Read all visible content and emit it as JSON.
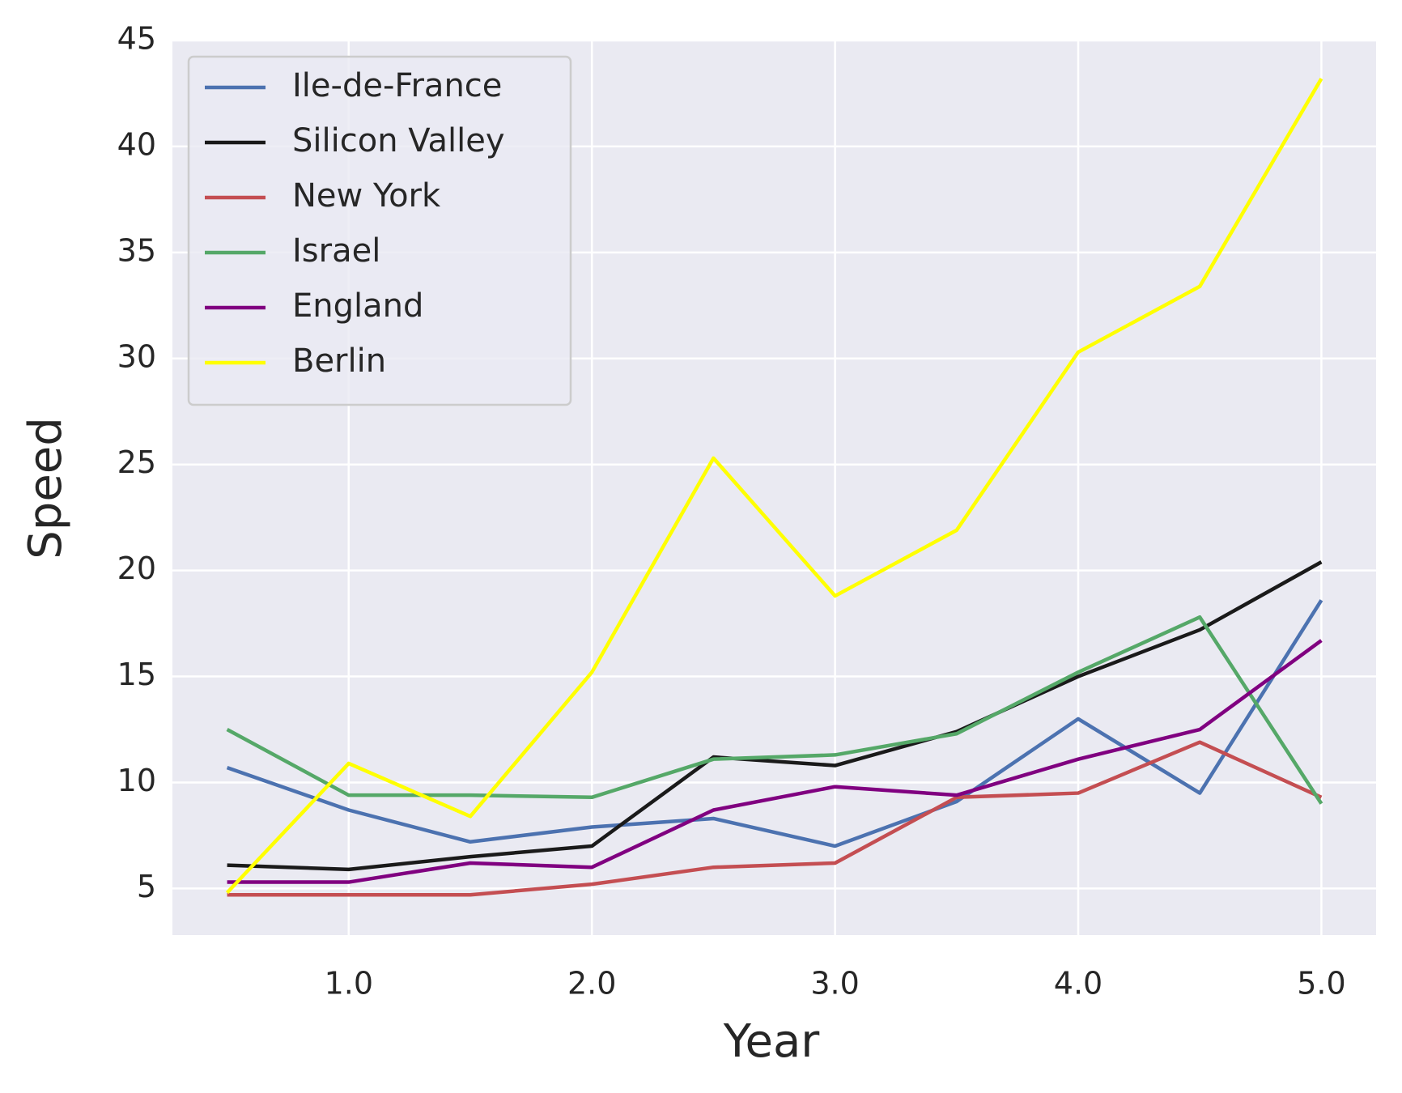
{
  "chart_data": {
    "type": "line",
    "x_label": "Year",
    "y_label": "Speed",
    "x": [
      0.5,
      1.0,
      1.5,
      2.0,
      2.5,
      3.0,
      3.5,
      4.0,
      4.5,
      5.0
    ],
    "series": [
      {
        "name": "Ile-de-France",
        "color": "#4c72b0",
        "values": [
          10.7,
          8.7,
          7.2,
          7.9,
          8.3,
          7.0,
          9.1,
          13.0,
          9.5,
          18.6
        ]
      },
      {
        "name": "Silicon Valley",
        "color": "#1a1a1a",
        "values": [
          6.1,
          5.9,
          6.5,
          7.0,
          11.2,
          10.8,
          12.4,
          15.0,
          17.2,
          20.4
        ]
      },
      {
        "name": "New York",
        "color": "#c44e52",
        "values": [
          4.7,
          4.7,
          4.7,
          5.2,
          6.0,
          6.2,
          9.3,
          9.5,
          11.9,
          9.3
        ]
      },
      {
        "name": "Israel",
        "color": "#55a868",
        "values": [
          12.5,
          9.4,
          9.4,
          9.3,
          11.1,
          11.3,
          12.3,
          15.2,
          17.8,
          9.0
        ]
      },
      {
        "name": "England",
        "color": "#800080",
        "values": [
          5.3,
          5.3,
          6.2,
          6.0,
          8.7,
          9.8,
          9.4,
          11.1,
          12.5,
          16.7
        ]
      },
      {
        "name": "Berlin",
        "color": "#ffff00",
        "values": [
          4.8,
          10.9,
          8.4,
          15.2,
          25.3,
          18.8,
          21.9,
          30.3,
          33.4,
          43.2
        ]
      }
    ],
    "xlim": [
      0.275,
      5.225
    ],
    "ylim": [
      2.8,
      45
    ],
    "xticks": [
      {
        "value": 1,
        "label": "1.0"
      },
      {
        "value": 2,
        "label": "2.0"
      },
      {
        "value": 3,
        "label": "3.0"
      },
      {
        "value": 4,
        "label": "4.0"
      },
      {
        "value": 5,
        "label": "5.0"
      }
    ],
    "yticks": [
      5,
      10,
      15,
      20,
      25,
      30,
      35,
      40,
      45
    ],
    "grid": true,
    "legend": "upper left",
    "background": "#eaeaf2"
  }
}
